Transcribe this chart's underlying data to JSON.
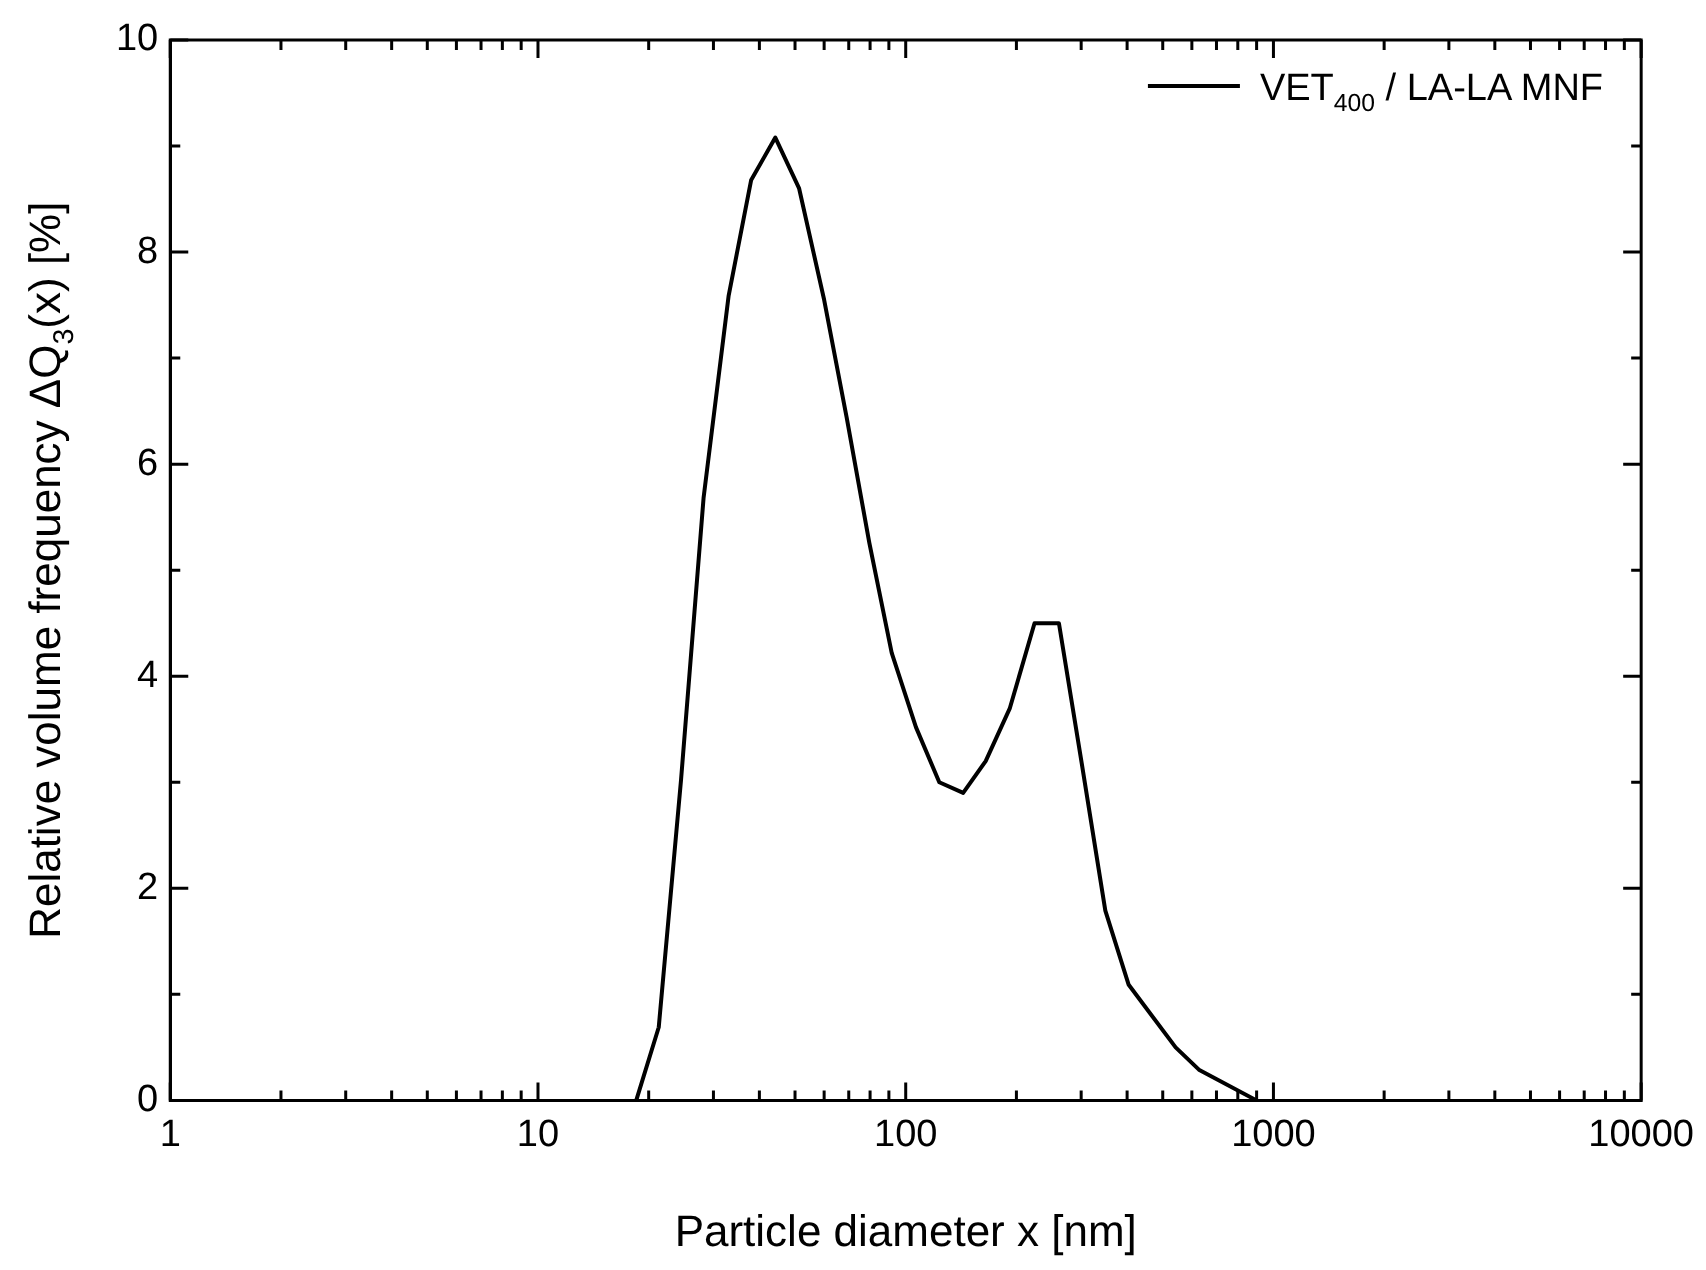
{
  "chart_data": {
    "type": "line",
    "xlabel": "Particle diameter x [nm]",
    "ylabel": "Relative volume frequency ΔQ$_{3}$(x) [%]",
    "log": "x",
    "legend": "top right",
    "marker": "none",
    "line_style": "solid",
    "grid": false,
    "xlim": [
      1,
      10000
    ],
    "ylim": [
      0,
      10
    ],
    "xticks": [
      1,
      {
        "value": 2,
        "label": null
      },
      {
        "value": 3,
        "label": null
      },
      {
        "value": 4,
        "label": null
      },
      {
        "value": 5,
        "label": null
      },
      {
        "value": 6,
        "label": null
      },
      {
        "value": 7,
        "label": null
      },
      {
        "value": 8,
        "label": null
      },
      {
        "value": 9,
        "label": null
      },
      10,
      {
        "value": 20,
        "label": null
      },
      {
        "value": 30,
        "label": null
      },
      {
        "value": 40,
        "label": null
      },
      {
        "value": 50,
        "label": null
      },
      {
        "value": 60,
        "label": null
      },
      {
        "value": 70,
        "label": null
      },
      {
        "value": 80,
        "label": null
      },
      {
        "value": 90,
        "label": null
      },
      100,
      {
        "value": 200,
        "label": null
      },
      {
        "value": 300,
        "label": null
      },
      {
        "value": 400,
        "label": null
      },
      {
        "value": 500,
        "label": null
      },
      {
        "value": 600,
        "label": null
      },
      {
        "value": 700,
        "label": null
      },
      {
        "value": 800,
        "label": null
      },
      {
        "value": 900,
        "label": null
      },
      1000,
      {
        "value": 2000,
        "label": null
      },
      {
        "value": 3000,
        "label": null
      },
      {
        "value": 4000,
        "label": null
      },
      {
        "value": 5000,
        "label": null
      },
      {
        "value": 6000,
        "label": null
      },
      {
        "value": 7000,
        "label": null
      },
      {
        "value": 8000,
        "label": null
      },
      {
        "value": 9000,
        "label": null
      },
      10000
    ],
    "yticks": [
      0,
      {
        "value": 1,
        "label": null
      },
      2,
      {
        "value": 3,
        "label": null
      },
      4,
      {
        "value": 5,
        "label": null
      },
      6,
      {
        "value": 7,
        "label": null
      },
      8,
      {
        "value": 9,
        "label": null
      },
      10
    ],
    "series": [
      {
        "name": "VET$_{400}$ / LA-LA MNF",
        "color": "#000000",
        "x": [
          18.5,
          21.3,
          24.5,
          28.2,
          33,
          38,
          44.2,
          51.3,
          60,
          69.1,
          79.6,
          91.6,
          106.6,
          123.4,
          143.3,
          165,
          192,
          224,
          261,
          301,
          349,
          404,
          542,
          627,
          900
        ],
        "values": [
          0,
          0.69,
          3.03,
          5.68,
          7.59,
          8.68,
          9.08,
          8.6,
          7.55,
          6.44,
          5.26,
          4.22,
          3.52,
          3.0,
          2.9,
          3.2,
          3.7,
          4.5,
          4.5,
          3.18,
          1.79,
          1.09,
          0.5,
          0.29,
          0
        ]
      }
    ]
  }
}
